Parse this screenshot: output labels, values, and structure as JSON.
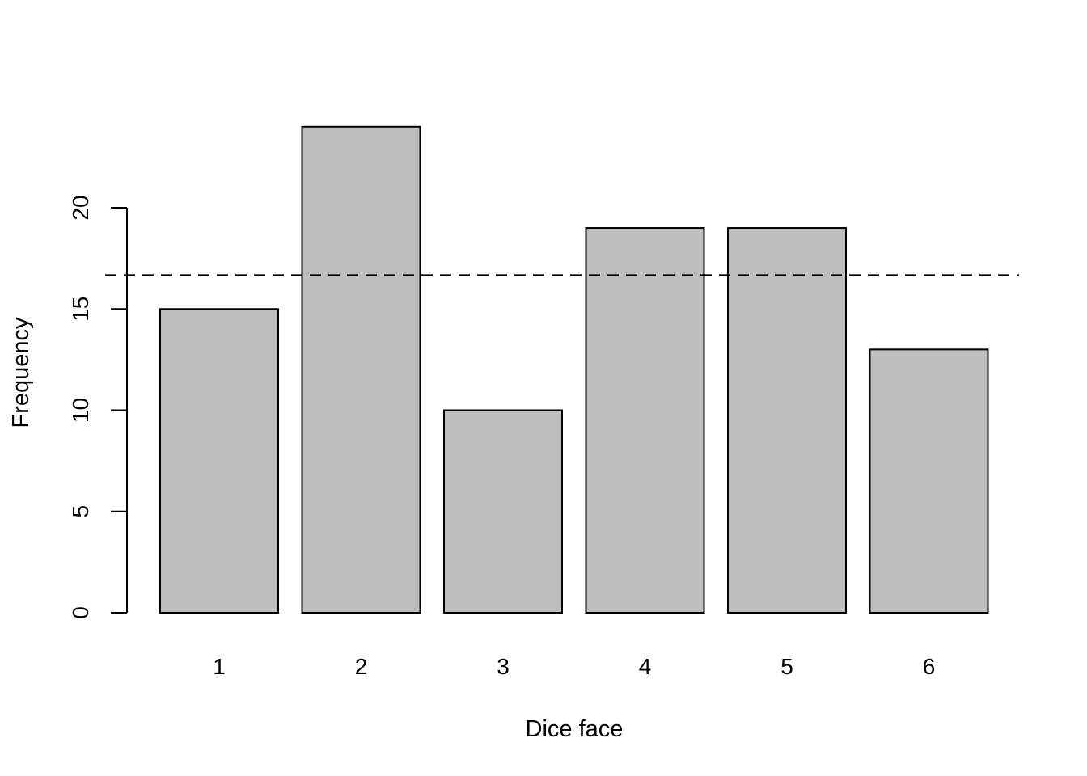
{
  "chart_data": {
    "type": "bar",
    "title": "",
    "xlabel": "Dice face",
    "ylabel": "Frequency",
    "categories": [
      "1",
      "2",
      "3",
      "4",
      "5",
      "6"
    ],
    "values": [
      15,
      24,
      10,
      19,
      19,
      13
    ],
    "ylim": [
      0,
      24
    ],
    "yticks": [
      "0",
      "5",
      "10",
      "15",
      "20"
    ],
    "reference_line": {
      "y": 16.67,
      "style": "dashed"
    },
    "bar_color": "#bebebe",
    "bar_border_color": "#000000",
    "grid": false,
    "legend": "none"
  }
}
